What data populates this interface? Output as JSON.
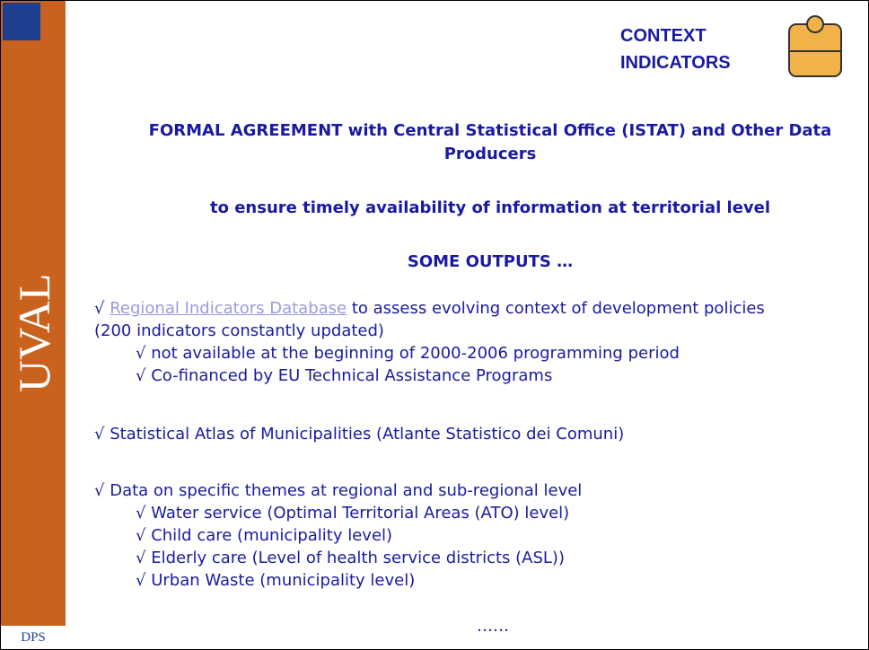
{
  "sidebar": {
    "label": "UVAL",
    "logo": "DPS"
  },
  "badge": {
    "title": "CONTEXT INDICATORS"
  },
  "headings": [
    "FORMAL AGREEMENT with Central Statistical Office (ISTAT) and Other Data Producers",
    "to ensure timely  availability of information at territorial level",
    "SOME OUTPUTS …"
  ],
  "items": [
    {
      "link": "Regional Indicators Database",
      "text": " to assess evolving context of development policies (200 indicators constantly updated)",
      "sub": [
        "not available at the beginning of 2000-2006 programming period",
        "Co-financed by EU Technical Assistance Programs"
      ]
    },
    {
      "text": "Statistical Atlas of Municipalities (Atlante Statistico dei Comuni)",
      "sub": []
    },
    {
      "text": "Data on specific themes at regional and sub-regional level",
      "sub": [
        "Water service (Optimal Territorial Areas (ATO) level)",
        "Child care (municipality level)",
        "Elderly care (Level of health service districts (ASL))",
        "Urban Waste (municipality level)"
      ]
    }
  ],
  "ellipsis": "……"
}
